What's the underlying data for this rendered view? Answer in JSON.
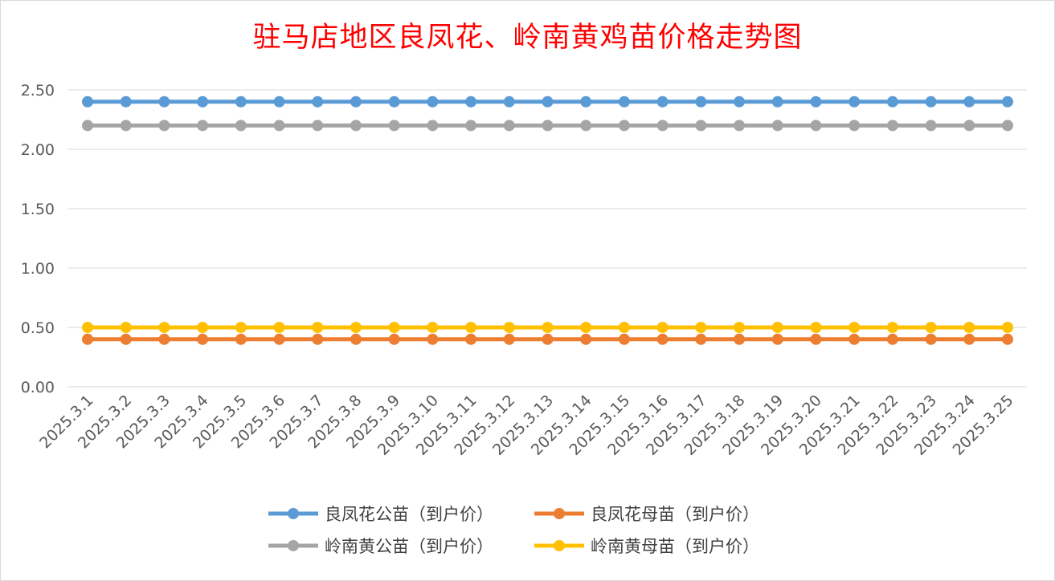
{
  "chart_data": {
    "type": "line",
    "title": "驻马店地区良凤花、岭南黄鸡苗价格走势图",
    "xlabel": "",
    "ylabel": "",
    "ylim": [
      0,
      2.5
    ],
    "yticks": [
      "0.00",
      "0.50",
      "1.00",
      "1.50",
      "2.00",
      "2.50"
    ],
    "grid": true,
    "legend_position": "bottom",
    "categories": [
      "2025.3.1",
      "2025.3.2",
      "2025.3.3",
      "2025.3.4",
      "2025.3.5",
      "2025.3.6",
      "2025.3.7",
      "2025.3.8",
      "2025.3.9",
      "2025.3.10",
      "2025.3.11",
      "2025.3.12",
      "2025.3.13",
      "2025.3.14",
      "2025.3.15",
      "2025.3.16",
      "2025.3.17",
      "2025.3.18",
      "2025.3.19",
      "2025.3.20",
      "2025.3.21",
      "2025.3.22",
      "2025.3.23",
      "2025.3.24",
      "2025.3.25"
    ],
    "series": [
      {
        "name": "良凤花公苗（到户价）",
        "color": "#5b9bd5",
        "values": [
          2.4,
          2.4,
          2.4,
          2.4,
          2.4,
          2.4,
          2.4,
          2.4,
          2.4,
          2.4,
          2.4,
          2.4,
          2.4,
          2.4,
          2.4,
          2.4,
          2.4,
          2.4,
          2.4,
          2.4,
          2.4,
          2.4,
          2.4,
          2.4,
          2.4
        ]
      },
      {
        "name": "良凤花母苗（到户价）",
        "color": "#ed7d31",
        "values": [
          0.4,
          0.4,
          0.4,
          0.4,
          0.4,
          0.4,
          0.4,
          0.4,
          0.4,
          0.4,
          0.4,
          0.4,
          0.4,
          0.4,
          0.4,
          0.4,
          0.4,
          0.4,
          0.4,
          0.4,
          0.4,
          0.4,
          0.4,
          0.4,
          0.4
        ]
      },
      {
        "name": "岭南黄公苗（到户价）",
        "color": "#a5a5a5",
        "values": [
          2.2,
          2.2,
          2.2,
          2.2,
          2.2,
          2.2,
          2.2,
          2.2,
          2.2,
          2.2,
          2.2,
          2.2,
          2.2,
          2.2,
          2.2,
          2.2,
          2.2,
          2.2,
          2.2,
          2.2,
          2.2,
          2.2,
          2.2,
          2.2,
          2.2
        ]
      },
      {
        "name": "岭南黄母苗（到户价）",
        "color": "#ffc000",
        "values": [
          0.5,
          0.5,
          0.5,
          0.5,
          0.5,
          0.5,
          0.5,
          0.5,
          0.5,
          0.5,
          0.5,
          0.5,
          0.5,
          0.5,
          0.5,
          0.5,
          0.5,
          0.5,
          0.5,
          0.5,
          0.5,
          0.5,
          0.5,
          0.5,
          0.5
        ]
      }
    ]
  }
}
